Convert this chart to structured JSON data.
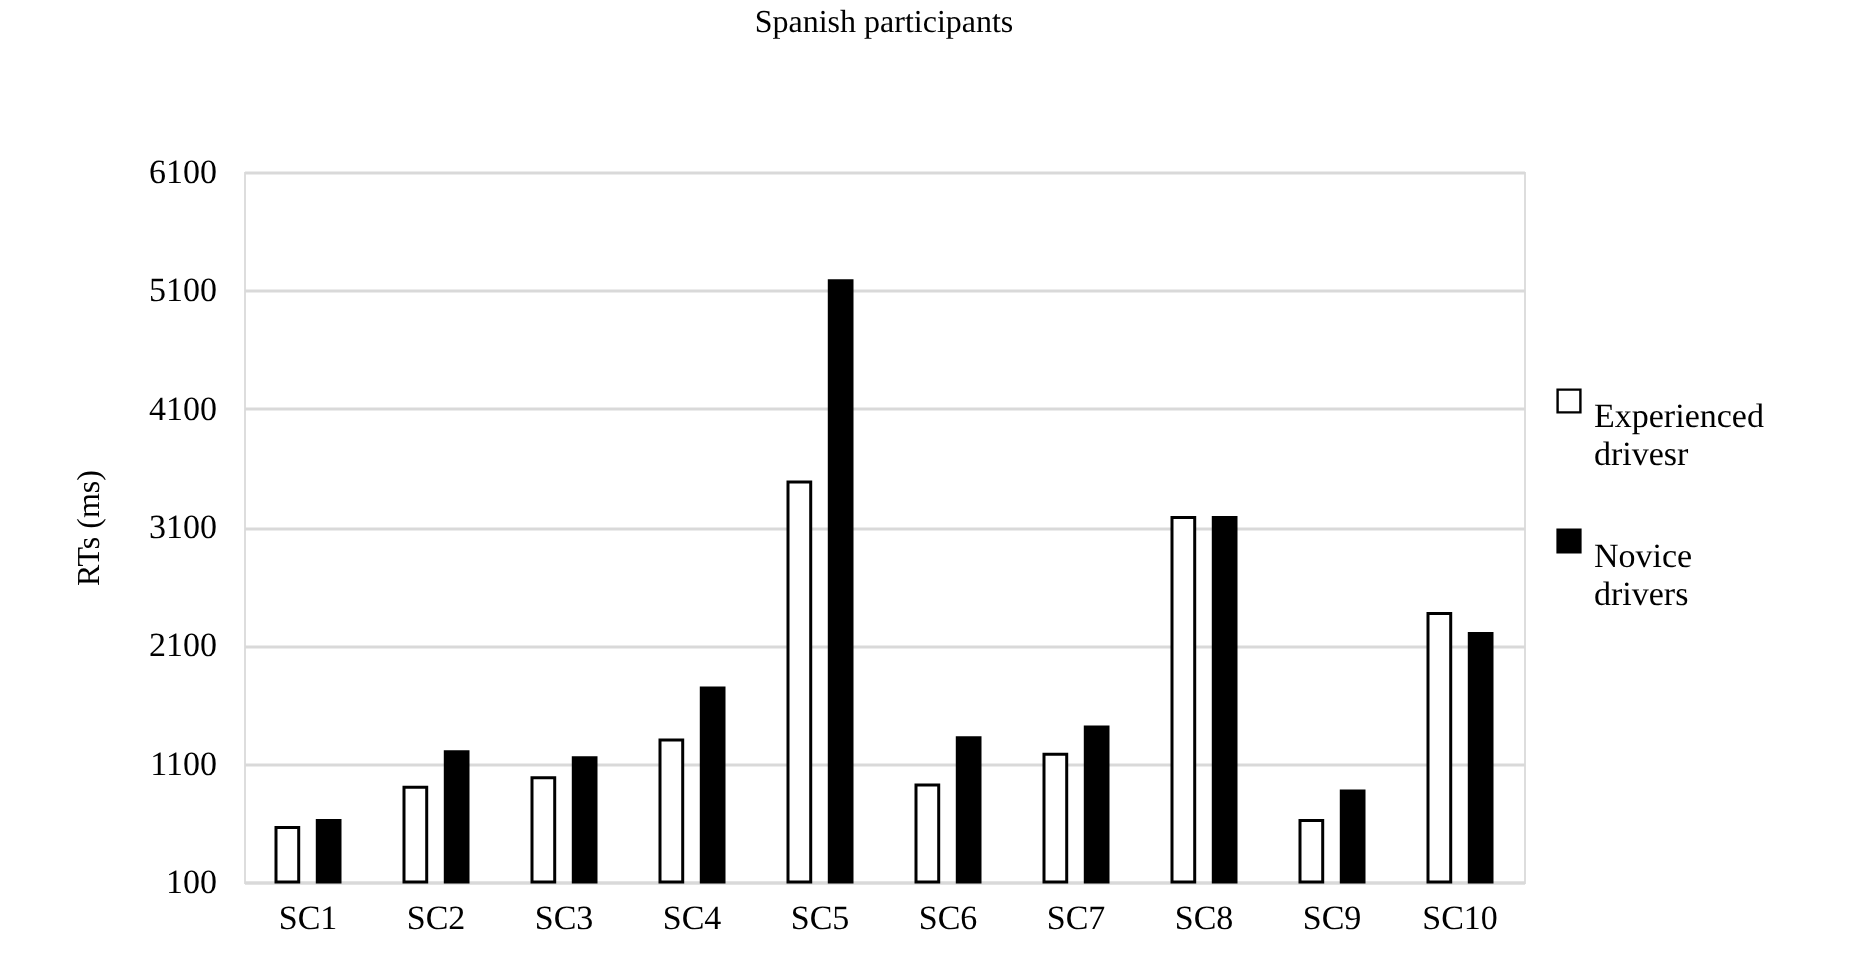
{
  "chart_data": {
    "type": "bar",
    "title": "Spanish participants",
    "ylabel": "RTs (ms)",
    "categories": [
      "SC1",
      "SC2",
      "SC3",
      "SC4",
      "SC5",
      "SC6",
      "SC7",
      "SC8",
      "SC9",
      "SC10"
    ],
    "series": [
      {
        "name": "Experienced drivesr",
        "color": "#ffffff",
        "values": [
          560,
          900,
          980,
          1300,
          3480,
          920,
          1180,
          3180,
          620,
          2370
        ]
      },
      {
        "name": "Novice drivers",
        "color": "#000000",
        "values": [
          620,
          1200,
          1150,
          1740,
          5180,
          1320,
          1410,
          3180,
          870,
          2200
        ]
      }
    ],
    "ylim": [
      100,
      6100
    ],
    "yticks": [
      100,
      1100,
      2100,
      3100,
      4100,
      5100,
      6100
    ],
    "grid": "y",
    "legend": "right"
  }
}
